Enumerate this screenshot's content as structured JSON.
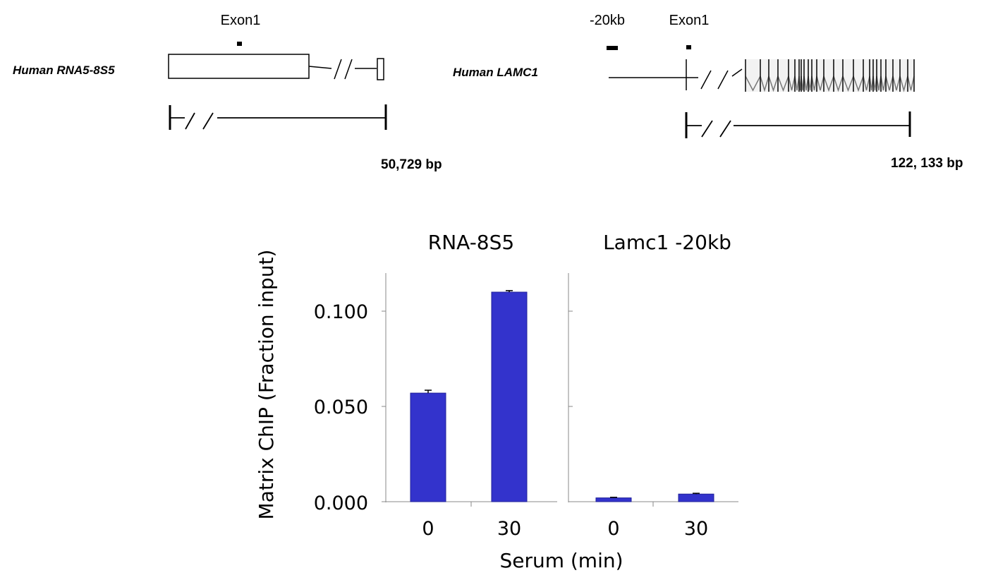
{
  "gene_maps": [
    {
      "gene_label": "Human  RNA5-8S5",
      "primers": [
        {
          "label": "Exon1"
        }
      ],
      "length_label": "50,729 bp"
    },
    {
      "gene_label": "Human LAMC1",
      "primers": [
        {
          "label": "-20kb"
        },
        {
          "label": "Exon1"
        }
      ],
      "length_label": "122, 133 bp"
    }
  ],
  "chart": {
    "ylabel": "Matrix ChIP (Fraction input)",
    "xlabel": "Serum (min)",
    "y_tick_labels": [
      "0.000",
      "0.050",
      "0.100"
    ],
    "bar_color": "#3333cc"
  },
  "chart_data": {
    "type": "bar",
    "ylim": [
      0,
      0.12
    ],
    "ylabel": "Matrix ChIP (Fraction input)",
    "xlabel": "Serum (min)",
    "panels": [
      {
        "title": "RNA-8S5",
        "categories": [
          "0",
          "30"
        ],
        "values": [
          0.057,
          0.11
        ],
        "errors": [
          0.0015,
          0.0008
        ]
      },
      {
        "title": "Lamc1 -20kb",
        "categories": [
          "0",
          "30"
        ],
        "values": [
          0.002,
          0.004
        ],
        "errors": [
          0.0003,
          0.0004
        ]
      }
    ]
  }
}
